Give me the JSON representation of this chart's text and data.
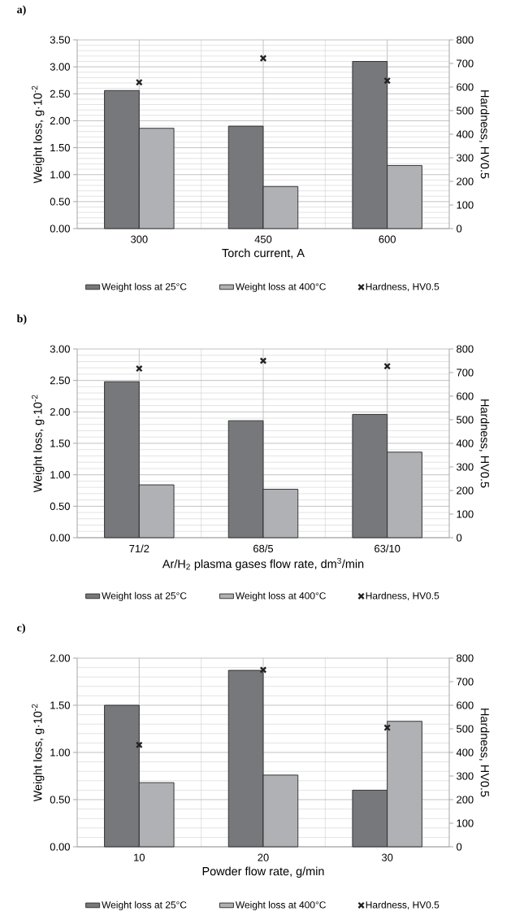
{
  "chart_data": [
    {
      "type": "bar",
      "title": "a)",
      "xlabel": "Torch current, A",
      "ylabel": "Weight loss, g·10$^{-2}$",
      "y2label": "Hardness, HV0.5",
      "categories": [
        "300",
        "450",
        "600"
      ],
      "series": [
        {
          "name": "Weight loss at 25°C",
          "color": "#77787b",
          "values": [
            2.56,
            1.9,
            3.1
          ]
        },
        {
          "name": "Weight loss at 400°C",
          "color": "#b0b1b4",
          "values": [
            1.86,
            0.78,
            1.17
          ]
        },
        {
          "name": "Hardness, HV0.5",
          "type": "scatter",
          "axis": "y2",
          "marker": "cross",
          "color": "#222222",
          "x": [
            "300",
            "450",
            "600"
          ],
          "values": [
            620,
            722,
            627
          ]
        }
      ],
      "ylim": [
        0,
        3.5
      ],
      "yticks": [
        {
          "value": 0,
          "label": "0.00"
        },
        {
          "value": 0.5,
          "label": "0.50"
        },
        {
          "value": 1,
          "label": "1.00"
        },
        {
          "value": 1.5,
          "label": "1.50"
        },
        {
          "value": 2,
          "label": "2.00"
        },
        {
          "value": 2.5,
          "label": "2.50"
        },
        {
          "value": 3,
          "label": "3.00"
        },
        {
          "value": 3.5,
          "label": "3.50"
        }
      ],
      "y2lim": [
        0,
        800
      ],
      "y2ticks": [
        0,
        100,
        200,
        300,
        400,
        500,
        600,
        700,
        800
      ],
      "grid": true,
      "legend": "bottom"
    },
    {
      "type": "bar",
      "title": "b)",
      "xlabel": "Ar/H$_{2}$ plasma gases flow rate, dm$^{3}$/min",
      "ylabel": "Weight loss, g·10$^{-2}$",
      "y2label": "Hardness, HV0.5",
      "categories": [
        "71/2",
        "68/5",
        "63/10"
      ],
      "series": [
        {
          "name": "Weight loss at 25°C",
          "color": "#77787b",
          "values": [
            2.48,
            1.86,
            1.96
          ]
        },
        {
          "name": "Weight loss at 400°C",
          "color": "#b0b1b4",
          "values": [
            0.84,
            0.77,
            1.36
          ]
        },
        {
          "name": "Hardness, HV0.5",
          "type": "scatter",
          "axis": "y2",
          "marker": "cross",
          "color": "#222222",
          "x": [
            "71/2",
            "68/5",
            "63/10"
          ],
          "values": [
            717,
            750,
            727
          ]
        }
      ],
      "ylim": [
        0,
        3
      ],
      "yticks": [
        {
          "value": 0,
          "label": "0.00"
        },
        {
          "value": 0.5,
          "label": "0.50"
        },
        {
          "value": 1,
          "label": "1.00"
        },
        {
          "value": 1.5,
          "label": "1.50"
        },
        {
          "value": 2,
          "label": "2.00"
        },
        {
          "value": 2.5,
          "label": "2.50"
        },
        {
          "value": 3,
          "label": "3.00"
        }
      ],
      "y2lim": [
        0,
        800
      ],
      "y2ticks": [
        0,
        100,
        200,
        300,
        400,
        500,
        600,
        700,
        800
      ],
      "grid": true,
      "legend": "bottom"
    },
    {
      "type": "bar",
      "title": "c)",
      "xlabel": "Powder flow rate, g/min",
      "ylabel": "Weight loss, g·10$^{-2}$",
      "y2label": "Hardness, HV0.5",
      "categories": [
        "10",
        "20",
        "30"
      ],
      "series": [
        {
          "name": "Weight loss at 25°C",
          "color": "#77787b",
          "values": [
            1.5,
            1.87,
            0.6
          ]
        },
        {
          "name": "Weight loss at 400°C",
          "color": "#b0b1b4",
          "values": [
            0.68,
            0.76,
            1.33
          ]
        },
        {
          "name": "Hardness, HV0.5",
          "type": "scatter",
          "axis": "y2",
          "marker": "cross",
          "color": "#222222",
          "x": [
            "10",
            "20",
            "30"
          ],
          "values": [
            432,
            750,
            505
          ]
        }
      ],
      "ylim": [
        0,
        2
      ],
      "yticks": [
        {
          "value": 0,
          "label": "0.00"
        },
        {
          "value": 0.5,
          "label": "0.50"
        },
        {
          "value": 1,
          "label": "1.00"
        },
        {
          "value": 1.5,
          "label": "1.50"
        },
        {
          "value": 2,
          "label": "2.00"
        }
      ],
      "y2lim": [
        0,
        800
      ],
      "y2ticks": [
        0,
        100,
        200,
        300,
        400,
        500,
        600,
        700,
        800
      ],
      "grid": true,
      "legend": "bottom"
    }
  ]
}
